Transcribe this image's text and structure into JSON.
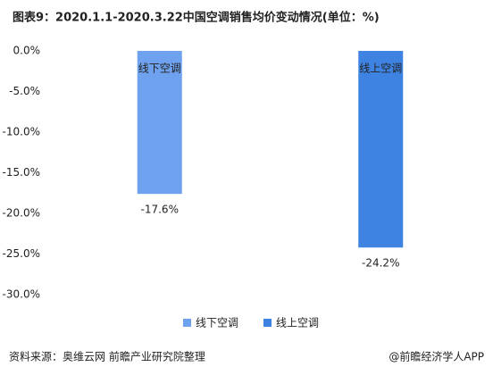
{
  "chart_data": {
    "type": "bar",
    "title": "图表9：2020.1.1-2020.3.22中国空调销售均价变动情况(单位：%)",
    "categories": [
      "线下空调",
      "线上空调"
    ],
    "values": [
      -17.6,
      -24.2
    ],
    "value_labels": [
      "-17.6%",
      "-24.2%"
    ],
    "colors": [
      "#6ea2ee",
      "#3f83e2"
    ],
    "ylim": [
      0,
      -30
    ],
    "yticks": [
      {
        "value": 0,
        "label": "0.0%"
      },
      {
        "value": -5,
        "label": "-5.0%"
      },
      {
        "value": -10,
        "label": "-10.0%"
      },
      {
        "value": -15,
        "label": "-15.0%"
      },
      {
        "value": -20,
        "label": "-20.0%"
      },
      {
        "value": -25,
        "label": "-25.0%"
      },
      {
        "value": -30,
        "label": "-30.0%"
      }
    ],
    "grid": false,
    "legend": "bottom",
    "source": "资料来源：奥维云网 前瞻产业研究院整理",
    "credit": "@前瞻经济学人APP"
  }
}
